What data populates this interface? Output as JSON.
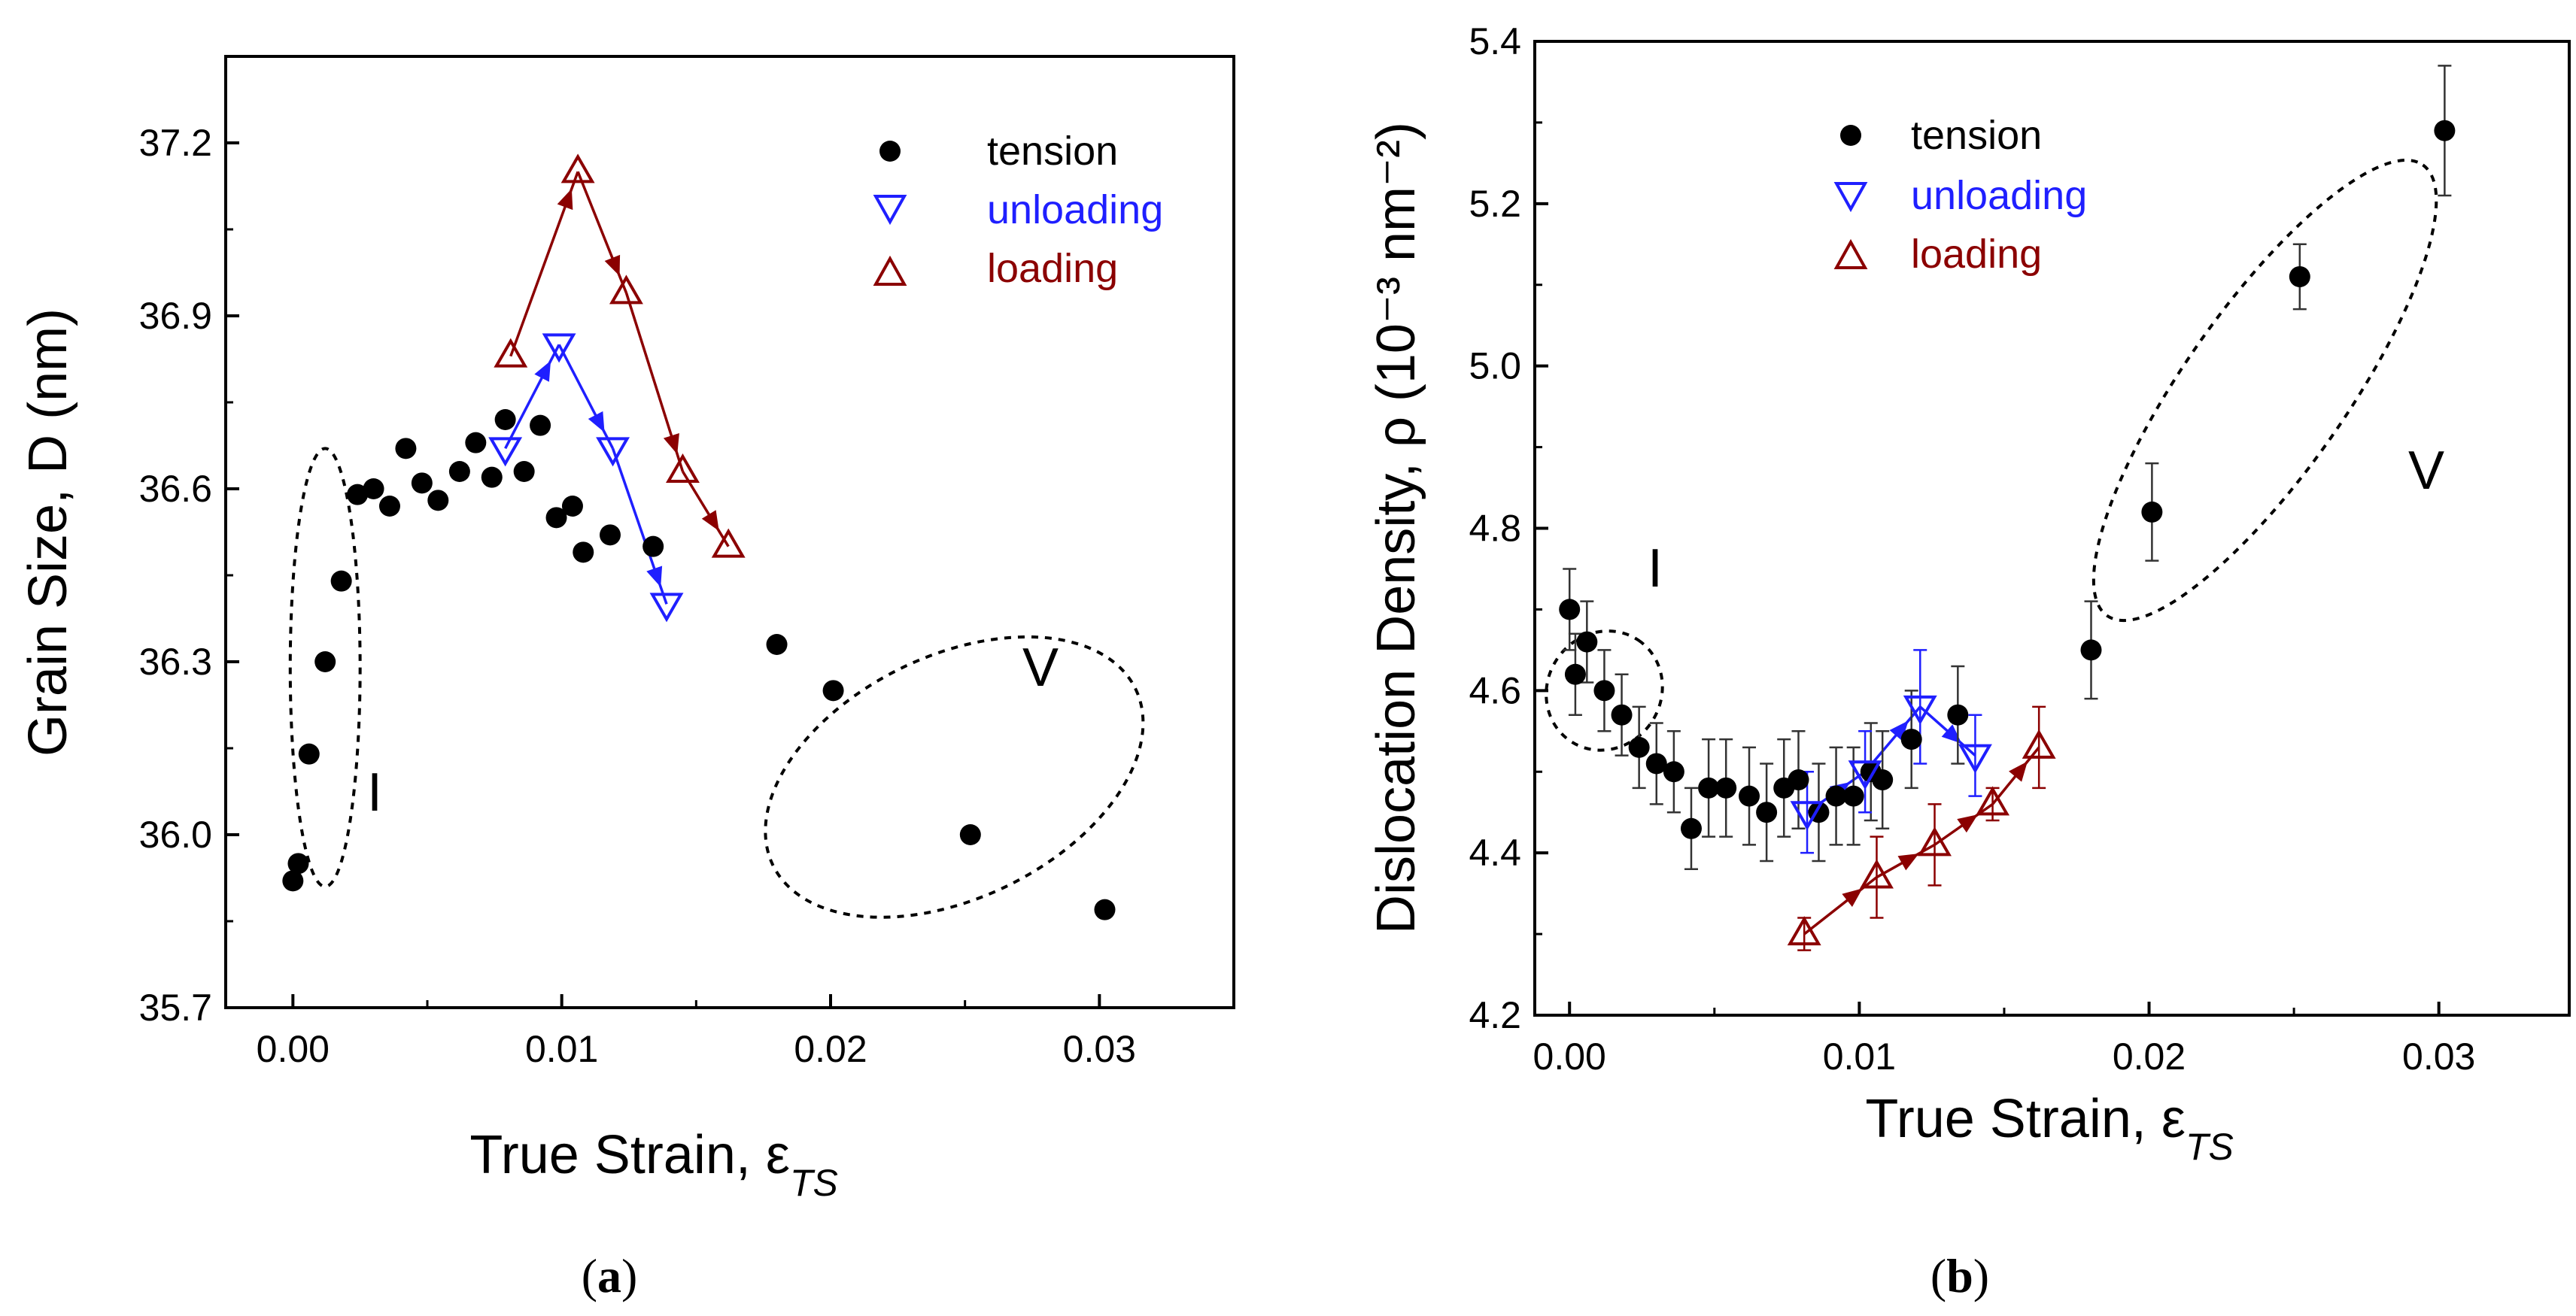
{
  "chart_data": [
    {
      "panel": "(a)",
      "type": "scatter",
      "xlabel": "True Strain, ε",
      "xlabel_sub": "TS",
      "ylabel": "Grain Size, D (nm)",
      "xlim": [
        -0.0025,
        0.035
      ],
      "ylim": [
        35.7,
        37.35
      ],
      "xticks": [
        "0.00",
        "0.01",
        "0.02",
        "0.03"
      ],
      "yticks": [
        "35.7",
        "36.0",
        "36.3",
        "36.6",
        "36.9",
        "37.2"
      ],
      "legend": {
        "placement": "top-right",
        "entries": [
          "tension",
          "unloading",
          "loading"
        ]
      },
      "colors": {
        "tension": "#000000",
        "unloading": "#1f1fff",
        "loading": "#8b0000"
      },
      "series": [
        {
          "name": "tension",
          "marker": "circle",
          "x": [
            0.0,
            0.0002,
            0.0006,
            0.0012,
            0.0018,
            0.0024,
            0.003,
            0.0036,
            0.0042,
            0.0048,
            0.0054,
            0.0062,
            0.0068,
            0.0074,
            0.0079,
            0.0086,
            0.0092,
            0.0098,
            0.0104,
            0.0108,
            0.0118,
            0.0134,
            0.018,
            0.0201,
            0.0252,
            0.0302
          ],
          "y": [
            35.92,
            35.95,
            36.14,
            36.3,
            36.44,
            36.59,
            36.6,
            36.57,
            36.67,
            36.61,
            36.58,
            36.63,
            36.68,
            36.62,
            36.72,
            36.63,
            36.71,
            36.55,
            36.57,
            36.49,
            36.52,
            36.5,
            36.33,
            36.25,
            36.0,
            35.87
          ]
        },
        {
          "name": "unloading",
          "marker": "triangle-down",
          "x": [
            0.0079,
            0.0099,
            0.0119,
            0.0139
          ],
          "y": [
            36.67,
            36.85,
            36.67,
            36.4
          ]
        },
        {
          "name": "loading",
          "marker": "triangle-up",
          "x": [
            0.0081,
            0.0106,
            0.0124,
            0.0145,
            0.0162
          ],
          "y": [
            36.83,
            37.15,
            36.94,
            36.63,
            36.5
          ]
        }
      ],
      "regions": [
        {
          "label": "I",
          "cx": 0.0012,
          "cy": 36.29,
          "rx": 0.0013,
          "ry": 0.38,
          "angle": 0
        },
        {
          "label": "V",
          "cx": 0.0246,
          "cy": 36.1,
          "rx": 0.0075,
          "ry": 0.21,
          "angle": -26
        }
      ]
    },
    {
      "panel": "(b)",
      "type": "scatter",
      "xlabel": "True Strain, ε",
      "xlabel_sub": "TS",
      "ylabel": "Dislocation Density, ρ (10⁻³ nm⁻²)",
      "xlim": [
        -0.0012,
        0.0345
      ],
      "ylim": [
        4.2,
        5.4
      ],
      "xticks": [
        "0.00",
        "0.01",
        "0.02",
        "0.03"
      ],
      "yticks": [
        "4.2",
        "4.4",
        "4.6",
        "4.8",
        "5.0",
        "5.2",
        "5.4"
      ],
      "legend": {
        "placement": "top-left",
        "entries": [
          "tension",
          "unloading",
          "loading"
        ]
      },
      "colors": {
        "tension": "#000000",
        "unloading": "#1f1fff",
        "loading": "#8b0000"
      },
      "series": [
        {
          "name": "tension",
          "marker": "circle",
          "x": [
            0.0,
            0.0002,
            0.0006,
            0.0012,
            0.0018,
            0.0024,
            0.003,
            0.0036,
            0.0042,
            0.0048,
            0.0054,
            0.0062,
            0.0068,
            0.0074,
            0.0079,
            0.0086,
            0.0092,
            0.0098,
            0.0104,
            0.0108,
            0.0118,
            0.0134,
            0.018,
            0.0201,
            0.0252,
            0.0302
          ],
          "y": [
            4.7,
            4.62,
            4.66,
            4.6,
            4.57,
            4.53,
            4.51,
            4.5,
            4.43,
            4.48,
            4.48,
            4.47,
            4.45,
            4.48,
            4.49,
            4.45,
            4.47,
            4.47,
            4.5,
            4.49,
            4.54,
            4.57,
            4.65,
            4.82,
            5.11,
            5.29
          ],
          "err": [
            0.05,
            0.05,
            0.05,
            0.05,
            0.05,
            0.05,
            0.05,
            0.05,
            0.05,
            0.06,
            0.06,
            0.06,
            0.06,
            0.06,
            0.06,
            0.06,
            0.06,
            0.06,
            0.06,
            0.06,
            0.06,
            0.06,
            0.06,
            0.06,
            0.04,
            0.08
          ]
        },
        {
          "name": "unloading",
          "marker": "triangle-down",
          "x": [
            0.0082,
            0.0102,
            0.0121,
            0.014
          ],
          "y": [
            4.45,
            4.5,
            4.58,
            4.52
          ],
          "err": [
            0.05,
            0.05,
            0.07,
            0.05
          ]
        },
        {
          "name": "loading",
          "marker": "triangle-up",
          "x": [
            0.0081,
            0.0106,
            0.0126,
            0.0146,
            0.0162
          ],
          "y": [
            4.3,
            4.37,
            4.41,
            4.46,
            4.53
          ],
          "err": [
            0.02,
            0.05,
            0.05,
            0.02,
            0.05
          ]
        }
      ],
      "regions": [
        {
          "label": "I",
          "cx": 0.0012,
          "cy": 4.6,
          "rx": 0.0021,
          "ry": 0.07,
          "angle": -56
        },
        {
          "label": "V",
          "cx": 0.024,
          "cy": 4.97,
          "rx": 0.0095,
          "ry": 0.1,
          "angle": -55
        }
      ]
    }
  ]
}
